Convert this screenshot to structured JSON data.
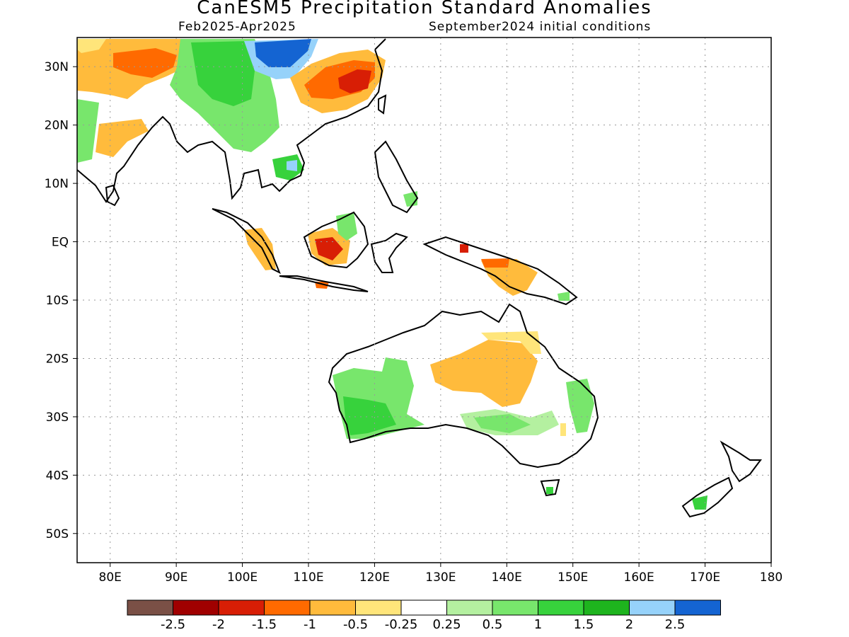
{
  "header": {
    "title": "CanESM5 Precipitation Standard Anomalies",
    "period": "Feb2025-Apr2025",
    "init": "September2024 initial conditions"
  },
  "axes": {
    "x_ticks": [
      "80E",
      "90E",
      "100E",
      "110E",
      "120E",
      "130E",
      "140E",
      "150E",
      "160E",
      "170E",
      "180"
    ],
    "y_ticks": [
      "30N",
      "20N",
      "10N",
      "EQ",
      "10S",
      "20S",
      "30S",
      "40S",
      "50S"
    ]
  },
  "legend": {
    "colors": [
      "#7a5046",
      "#a00000",
      "#d81e05",
      "#ff6a00",
      "#ffbb3c",
      "#ffe57a",
      "#ffffff",
      "#b4f0a0",
      "#78e66c",
      "#37d23c",
      "#1eb41e",
      "#96d2fa",
      "#1464d2"
    ],
    "labels": [
      "-2.5",
      "-2",
      "-1.5",
      "-1",
      "-0.5",
      "-0.25",
      "0.25",
      "0.5",
      "1",
      "1.5",
      "2",
      "2.5"
    ]
  }
}
